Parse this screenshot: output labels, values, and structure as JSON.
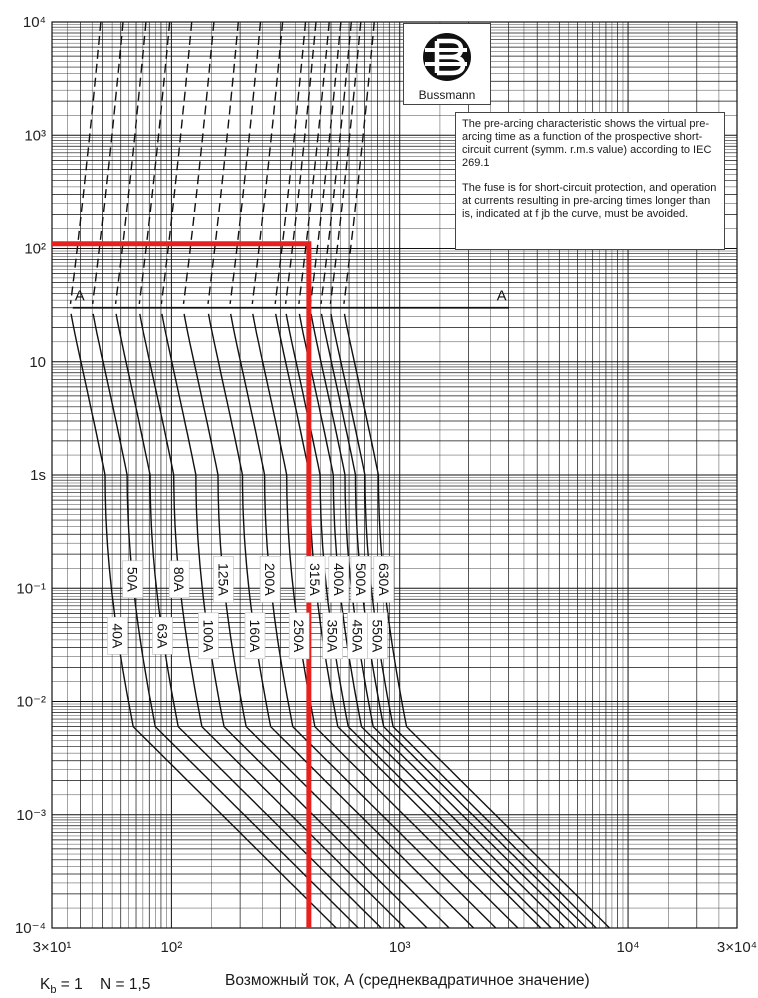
{
  "chart_data": {
    "type": "line",
    "xscale": "log",
    "yscale": "log",
    "xlim": [
      30,
      30000
    ],
    "ylim": [
      0.0001,
      10000
    ],
    "x_tick_labels": [
      {
        "value": 30,
        "label": "3×10¹"
      },
      {
        "value": 100,
        "label": "10²"
      },
      {
        "value": 1000,
        "label": "10³"
      },
      {
        "value": 10000,
        "label": "10⁴"
      },
      {
        "value": 30000,
        "label": "3×10⁴"
      }
    ],
    "y_tick_labels": [
      {
        "value": 10000,
        "label": "10⁴"
      },
      {
        "value": 1000,
        "label": "10³"
      },
      {
        "value": 100,
        "label": "10²"
      },
      {
        "value": 10,
        "label": "10"
      },
      {
        "value": 1,
        "label": "1s"
      },
      {
        "value": 0.1,
        "label": "10⁻¹"
      },
      {
        "value": 0.01,
        "label": "10⁻²"
      },
      {
        "value": 0.001,
        "label": "10⁻³"
      },
      {
        "value": 0.0001,
        "label": "10⁻⁴"
      }
    ],
    "xlabel": "Возможный ток, А (среднеквадратичное значение)",
    "ylabel": "",
    "grid": true,
    "series": [
      {
        "name": "40A",
        "rated": 40,
        "label_y": 0.038,
        "label_side": "lower"
      },
      {
        "name": "50A",
        "rated": 50,
        "label_y": 0.12,
        "label_side": "upper"
      },
      {
        "name": "63A",
        "rated": 63,
        "label_y": 0.038,
        "label_side": "lower"
      },
      {
        "name": "80A",
        "rated": 80,
        "label_y": 0.12,
        "label_side": "upper"
      },
      {
        "name": "100A",
        "rated": 100,
        "label_y": 0.038,
        "label_side": "lower"
      },
      {
        "name": "125A",
        "rated": 125,
        "label_y": 0.12,
        "label_side": "upper"
      },
      {
        "name": "160A",
        "rated": 160,
        "label_y": 0.038,
        "label_side": "lower"
      },
      {
        "name": "200A",
        "rated": 200,
        "label_y": 0.12,
        "label_side": "upper"
      },
      {
        "name": "250A",
        "rated": 250,
        "label_y": 0.038,
        "label_side": "lower"
      },
      {
        "name": "315A",
        "rated": 315,
        "label_y": 0.12,
        "label_side": "upper"
      },
      {
        "name": "350A",
        "rated": 350,
        "label_y": 0.038,
        "label_side": "lower"
      },
      {
        "name": "400A",
        "rated": 400,
        "label_y": 0.12,
        "label_side": "upper"
      },
      {
        "name": "450A",
        "rated": 450,
        "label_y": 0.038,
        "label_side": "lower"
      },
      {
        "name": "500A",
        "rated": 500,
        "label_y": 0.12,
        "label_side": "upper"
      },
      {
        "name": "550A",
        "rated": 550,
        "label_y": 0.038,
        "label_side": "lower"
      },
      {
        "name": "630A",
        "rated": 630,
        "label_y": 0.12,
        "label_side": "upper"
      }
    ],
    "line_A": {
      "label": "A",
      "y": 30,
      "x_range": [
        37,
        3000
      ]
    },
    "red_marker": {
      "x": 400,
      "y": 110
    }
  },
  "brand": "Bussmann",
  "note": {
    "paragraph1": "The pre-arcing characteristic shows the virtual pre-arcing time as a function of the prospective short-circuit current (symm. r.m.s value) according to IEC 269.1",
    "paragraph2": "The fuse is for short-circuit protection, and operation at currents resulting in pre-arcing times longer than is, indicated at f jb the curve, must be avoided."
  },
  "params": {
    "kb_base": "K",
    "kb_sub": "b",
    "kb_value": " = 1",
    "n": "N = 1,5"
  }
}
